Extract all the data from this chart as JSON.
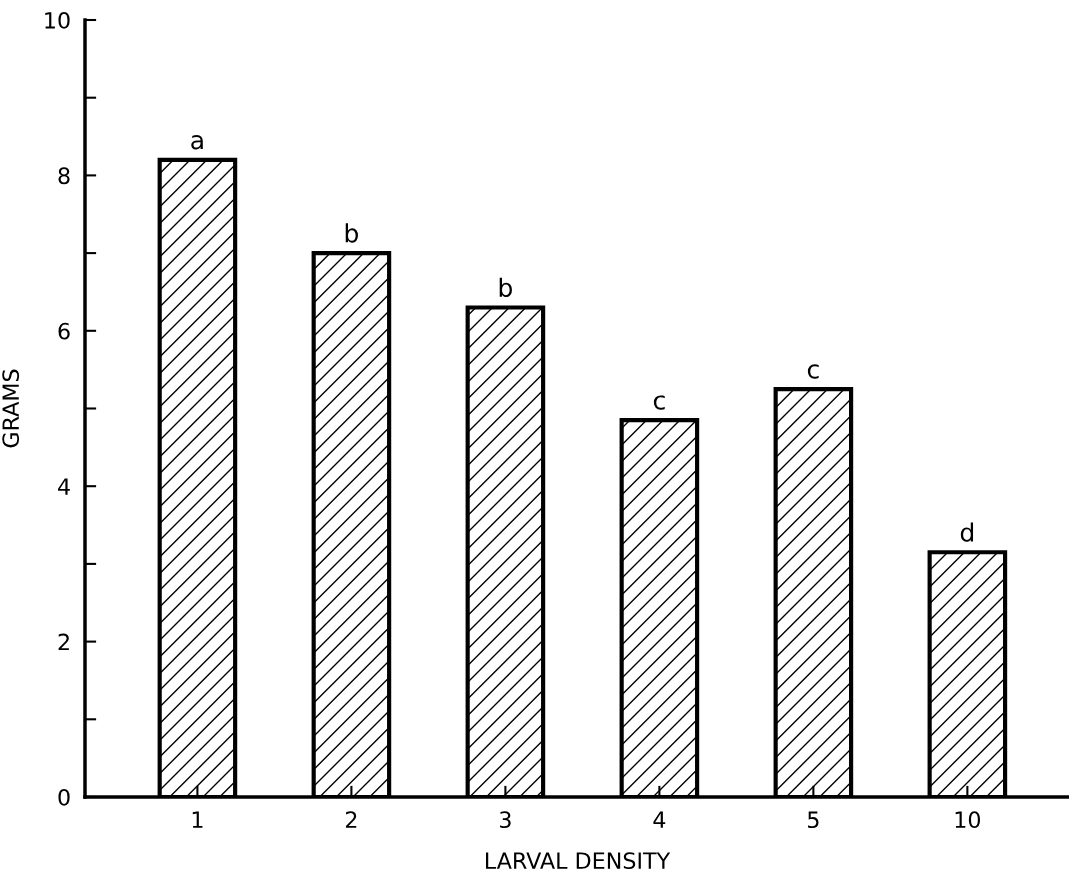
{
  "chart_data": {
    "type": "bar",
    "xlabel": "LARVAL DENSITY",
    "ylabel": "GRAMS",
    "categories": [
      "1",
      "2",
      "3",
      "4",
      "5",
      "10"
    ],
    "values": [
      8.2,
      7.0,
      6.3,
      4.85,
      5.25,
      3.15
    ],
    "color": "#000000",
    "ylim": [
      0,
      10
    ],
    "yticks": [
      0,
      {
        "value": 1,
        "label": null
      },
      2,
      {
        "value": 3,
        "label": null
      },
      4,
      {
        "value": 5,
        "label": null
      },
      6,
      {
        "value": 7,
        "label": null
      },
      8,
      {
        "value": 9,
        "label": null
      },
      10
    ],
    "grid": false,
    "annotations": [
      {
        "text": "a",
        "x": "1",
        "y": 8.2
      },
      {
        "text": "b",
        "x": "2",
        "y": 7.0
      },
      {
        "text": "b",
        "x": "3",
        "y": 6.3
      },
      {
        "text": "c",
        "x": "4",
        "y": 4.85
      },
      {
        "text": "c",
        "x": "5",
        "y": 5.25
      },
      {
        "text": "d",
        "x": "10",
        "y": 3.15
      }
    ]
  }
}
